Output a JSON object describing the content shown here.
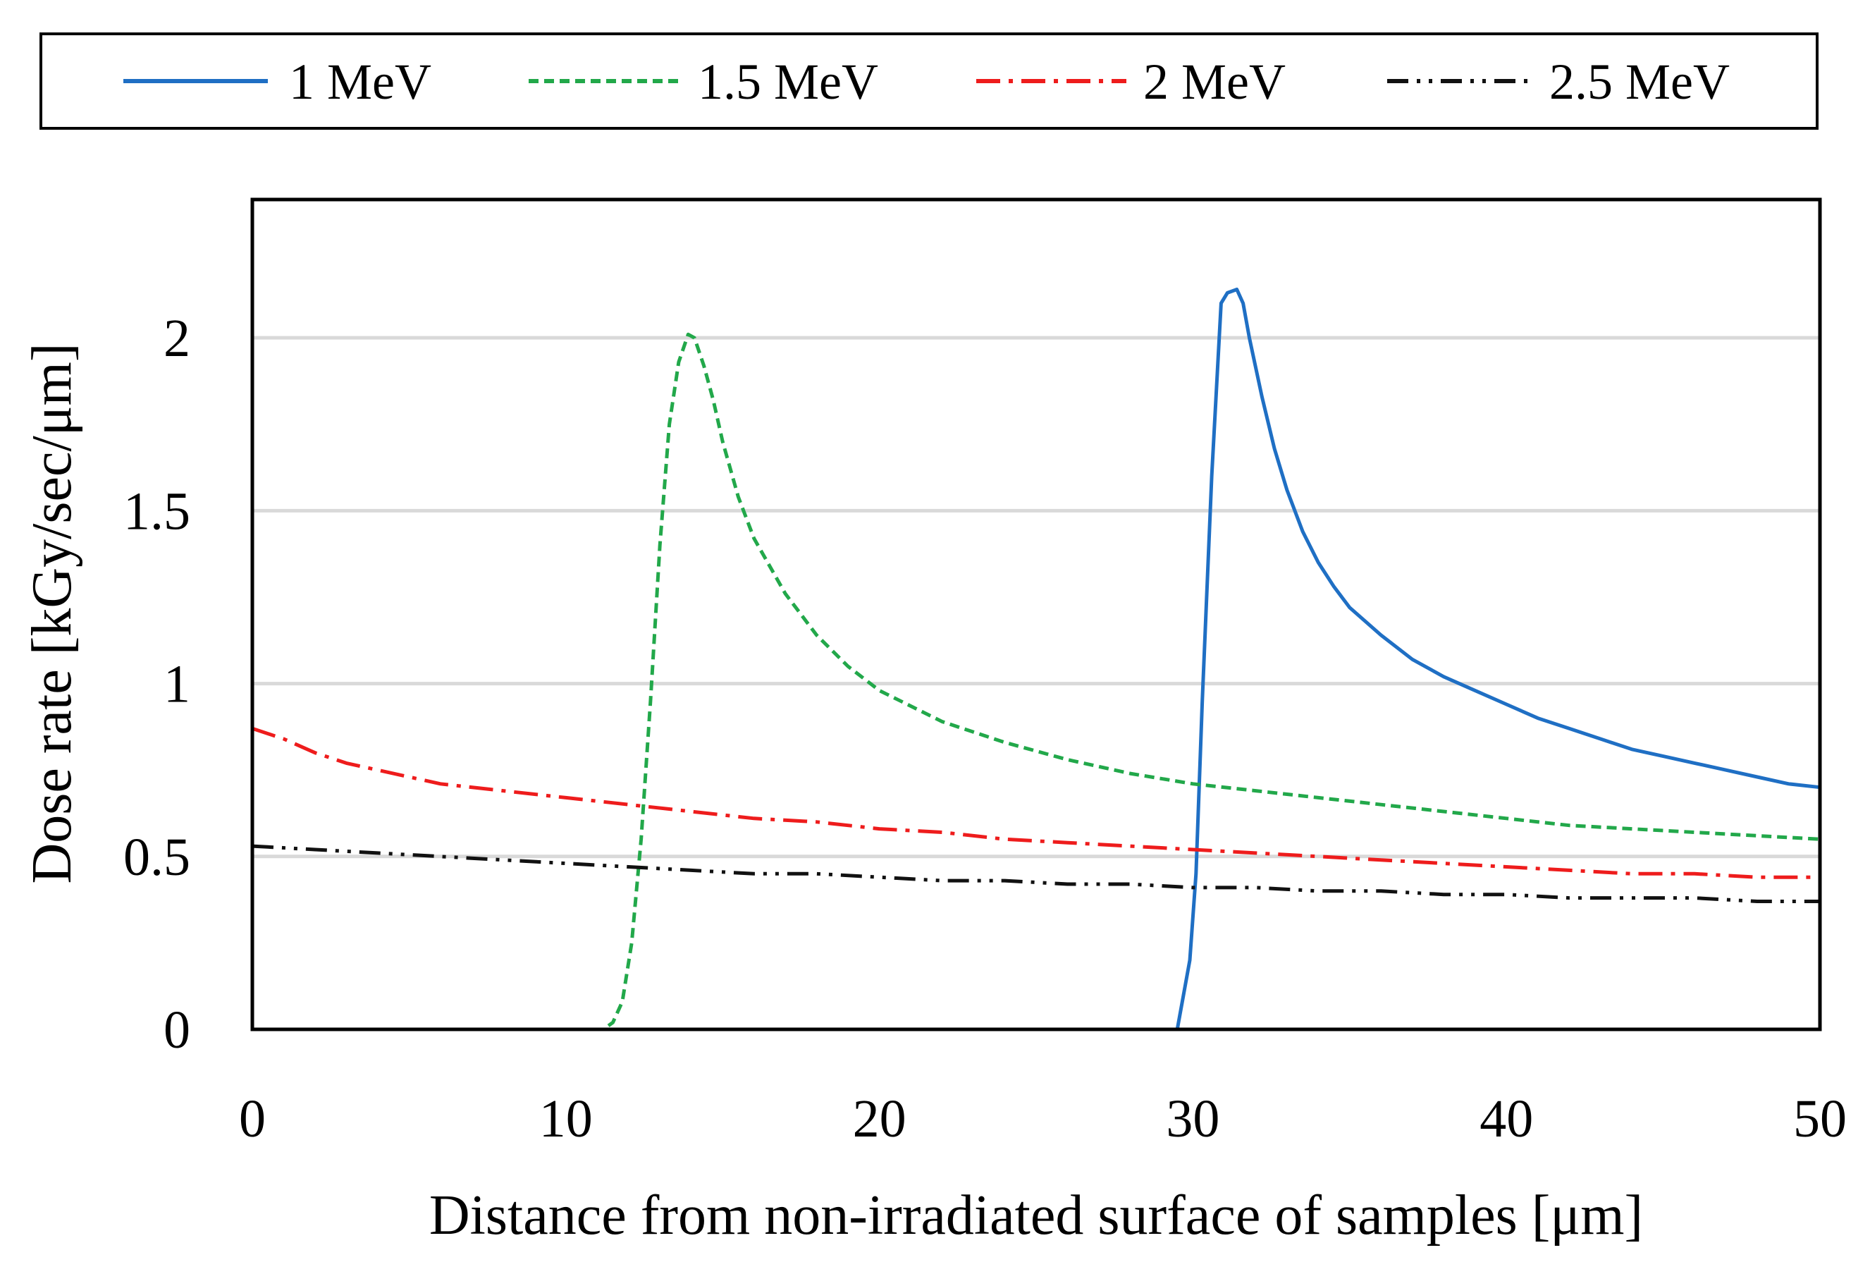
{
  "chart_data": {
    "type": "line",
    "title": "",
    "xlabel": "Distance from non-irradiated surface of samples [μm]",
    "ylabel": "Dose rate [kGy/sec/μm]",
    "xlim": [
      0,
      50
    ],
    "ylim": [
      0,
      2.4
    ],
    "xticks": [
      0,
      10,
      20,
      30,
      40,
      50
    ],
    "xtick_labels": [
      "0",
      "10",
      "20",
      "30",
      "40",
      "50"
    ],
    "yticks": [
      0,
      0.5,
      1,
      1.5,
      2
    ],
    "ytick_labels": [
      "0",
      "0.5",
      "1",
      "1.5",
      "2"
    ],
    "grid": "horizontal",
    "legend_position": "top",
    "series": [
      {
        "name": "1 MeV",
        "color": "#1f6fc4",
        "dash": "solid",
        "x": [
          29.5,
          29.7,
          29.9,
          30.1,
          30.3,
          30.6,
          30.9,
          31.1,
          31.4,
          31.6,
          31.8,
          32.2,
          32.6,
          33.0,
          33.5,
          34.0,
          34.5,
          35.0,
          36.0,
          37.0,
          38.0,
          39.0,
          40.0,
          41.0,
          42.0,
          43.0,
          44.0,
          45.0,
          46.0,
          47.0,
          48.0,
          49.0,
          50.0
        ],
        "y": [
          0.0,
          0.1,
          0.2,
          0.45,
          0.95,
          1.6,
          2.1,
          2.13,
          2.14,
          2.1,
          2.0,
          1.83,
          1.68,
          1.56,
          1.44,
          1.35,
          1.28,
          1.22,
          1.14,
          1.07,
          1.02,
          0.98,
          0.94,
          0.9,
          0.87,
          0.84,
          0.81,
          0.79,
          0.77,
          0.75,
          0.73,
          0.71,
          0.7
        ]
      },
      {
        "name": "1.5 MeV",
        "color": "#22a84a",
        "dash": "dashed",
        "x": [
          10.9,
          11.2,
          11.5,
          11.8,
          12.1,
          12.4,
          12.7,
          13.0,
          13.3,
          13.6,
          13.9,
          14.1,
          14.4,
          14.7,
          15.0,
          15.5,
          16.0,
          17.0,
          18.0,
          19.0,
          20.0,
          22.0,
          24.0,
          26.0,
          28.0,
          30.0,
          32.0,
          34.0,
          36.0,
          38.0,
          40.0,
          42.0,
          44.0,
          46.0,
          48.0,
          50.0
        ],
        "y": [
          0.0,
          0.0,
          0.02,
          0.08,
          0.25,
          0.55,
          0.95,
          1.4,
          1.75,
          1.93,
          2.01,
          2.0,
          1.92,
          1.82,
          1.7,
          1.54,
          1.42,
          1.26,
          1.14,
          1.05,
          0.98,
          0.89,
          0.83,
          0.78,
          0.74,
          0.71,
          0.69,
          0.67,
          0.65,
          0.63,
          0.61,
          0.59,
          0.58,
          0.57,
          0.56,
          0.55
        ]
      },
      {
        "name": "2 MeV",
        "color": "#ee1c1c",
        "dash": "dashdot",
        "x": [
          0,
          1,
          2,
          3,
          4,
          5,
          6,
          8,
          10,
          12,
          14,
          16,
          18,
          20,
          22,
          24,
          26,
          28,
          30,
          32,
          34,
          36,
          38,
          40,
          42,
          44,
          46,
          48,
          50
        ],
        "y": [
          0.87,
          0.84,
          0.8,
          0.77,
          0.75,
          0.73,
          0.71,
          0.69,
          0.67,
          0.65,
          0.63,
          0.61,
          0.6,
          0.58,
          0.57,
          0.55,
          0.54,
          0.53,
          0.52,
          0.51,
          0.5,
          0.49,
          0.48,
          0.47,
          0.46,
          0.45,
          0.45,
          0.44,
          0.44
        ]
      },
      {
        "name": "2.5 MeV",
        "color": "#111111",
        "dash": "dashdotdot",
        "x": [
          0,
          2,
          4,
          6,
          8,
          10,
          12,
          14,
          16,
          18,
          20,
          22,
          24,
          26,
          28,
          30,
          32,
          34,
          36,
          38,
          40,
          42,
          44,
          46,
          48,
          50
        ],
        "y": [
          0.53,
          0.52,
          0.51,
          0.5,
          0.49,
          0.48,
          0.47,
          0.46,
          0.45,
          0.45,
          0.44,
          0.43,
          0.43,
          0.42,
          0.42,
          0.41,
          0.41,
          0.4,
          0.4,
          0.39,
          0.39,
          0.38,
          0.38,
          0.38,
          0.37,
          0.37
        ]
      }
    ]
  }
}
